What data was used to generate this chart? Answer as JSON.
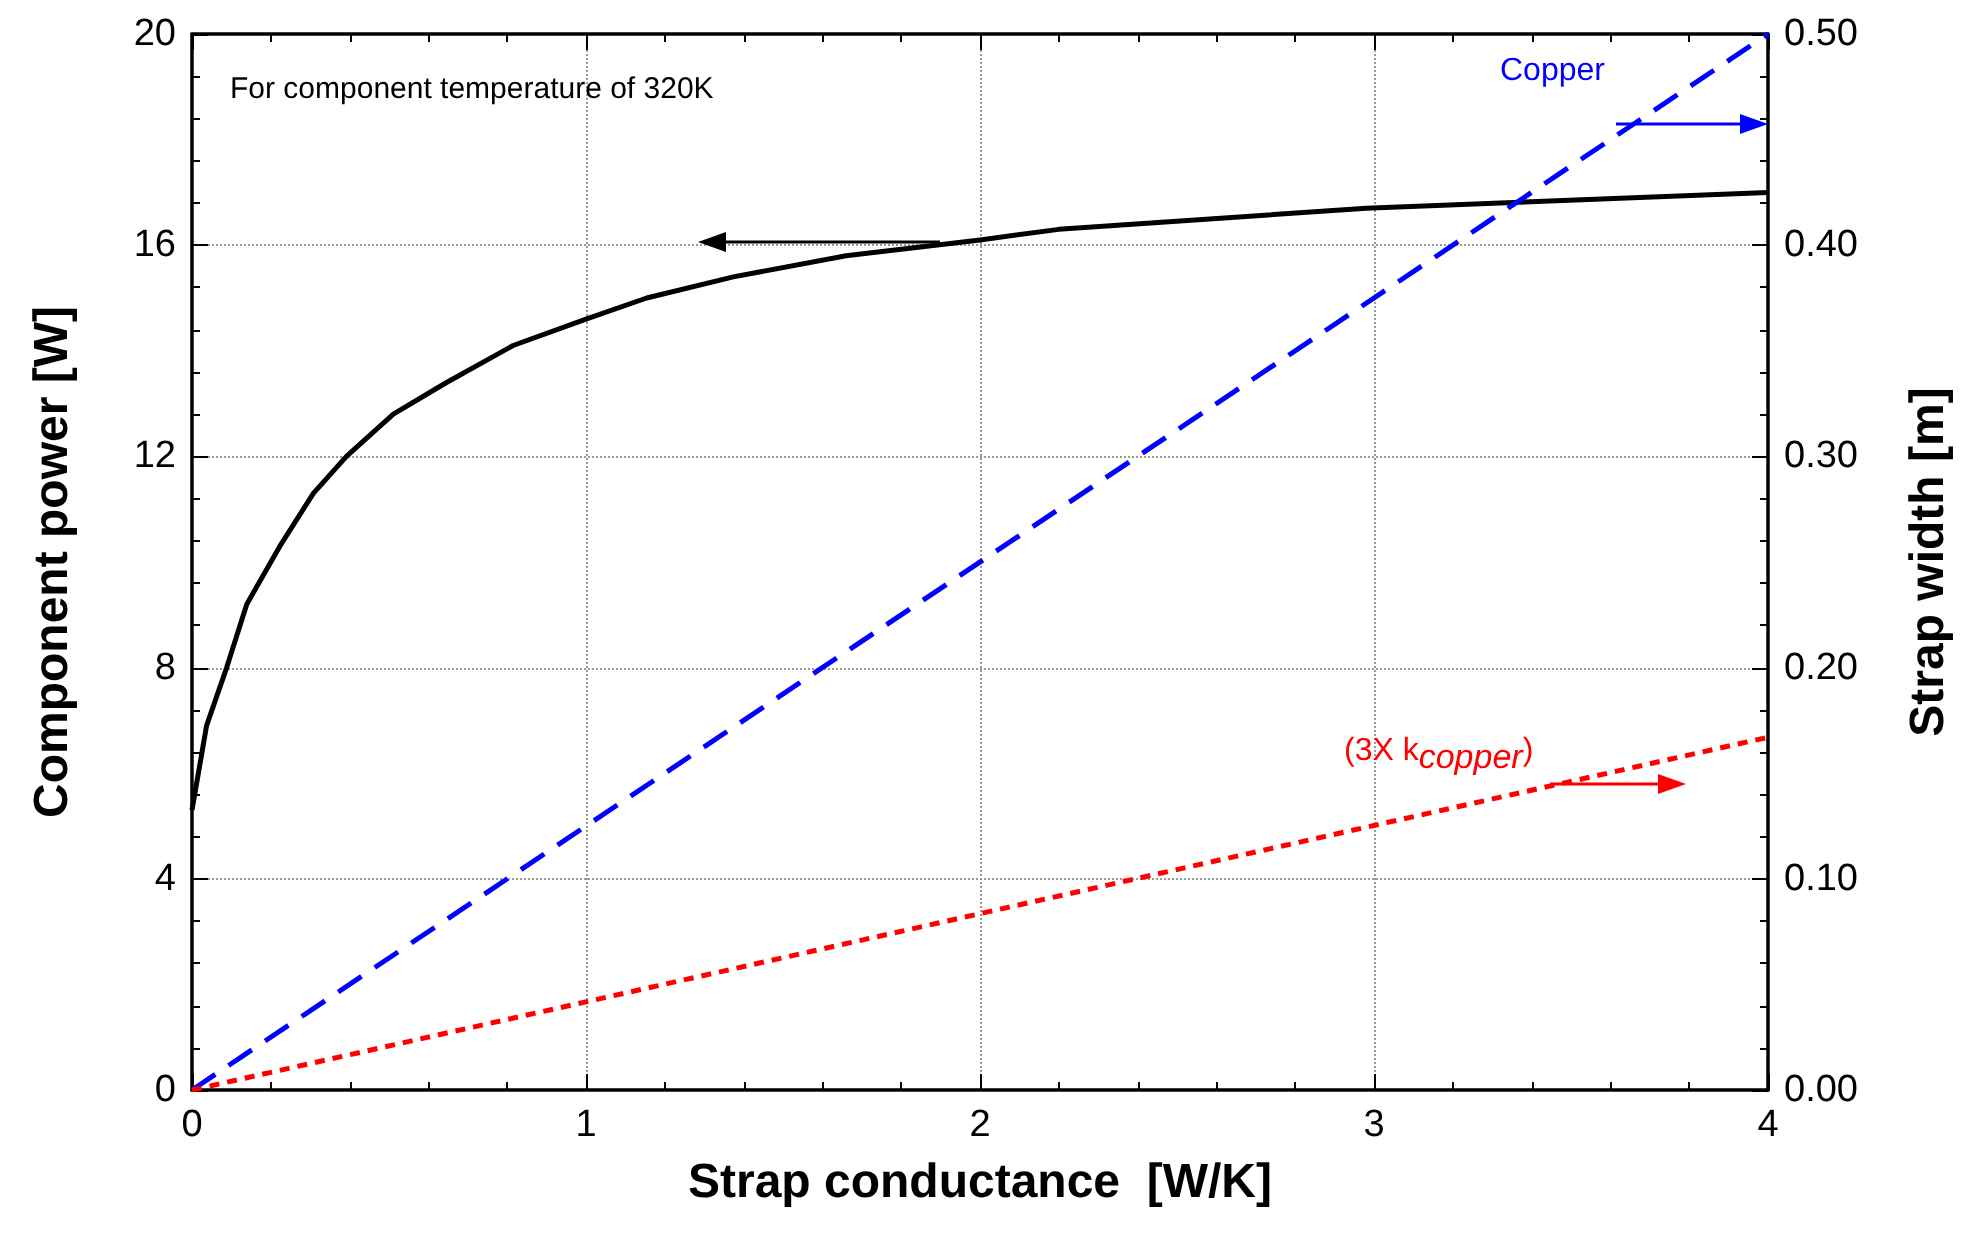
{
  "chart_data": {
    "type": "line",
    "xlabel": "Strap conductance  [W/K]",
    "ylabel": "Component power [W]",
    "y2label": "Strap width [m]",
    "xlim": [
      0,
      4
    ],
    "xticks": [
      0,
      1,
      2,
      3,
      4
    ],
    "ylim": [
      0,
      20
    ],
    "yticks": [
      0,
      4,
      8,
      12,
      16,
      20
    ],
    "y2lim": [
      0,
      0.5
    ],
    "y2ticks": [
      {
        "value": 0,
        "label": "0.00"
      },
      {
        "value": 0.1,
        "label": "0.10"
      },
      {
        "value": 0.2,
        "label": "0.20"
      },
      {
        "value": 0.3,
        "label": "0.30"
      },
      {
        "value": 0.4,
        "label": "0.40"
      },
      {
        "value": 0.5,
        "label": "0.50"
      }
    ],
    "grid": true,
    "marker": "none",
    "annotations": [
      "For component temperature of 320K",
      "Copper",
      "(3X k$_{copper}$)"
    ],
    "series": [
      {
        "color": "#000000",
        "line_style": "solid",
        "x": [
          0,
          0.037,
          0.088,
          0.139,
          0.223,
          0.308,
          0.392,
          0.511,
          0.646,
          0.815,
          1.0,
          1.154,
          1.374,
          1.66,
          2.0,
          2.2,
          2.98,
          4.0
        ],
        "values": [
          5.3,
          6.9,
          8.0,
          9.2,
          10.3,
          11.3,
          12.0,
          12.8,
          13.4,
          14.1,
          14.6,
          15.0,
          15.4,
          15.8,
          16.1,
          16.3,
          16.7,
          17.0
        ]
      },
      {
        "color": "#0000ff",
        "line_style": "dashed",
        "axis": "y2",
        "x": [
          0,
          4
        ],
        "values": [
          0,
          0.5
        ]
      },
      {
        "color": "#ff0000",
        "line_style": "dotted",
        "axis": "y2",
        "x": [
          0,
          4
        ],
        "values": [
          0,
          0.167
        ]
      }
    ]
  }
}
